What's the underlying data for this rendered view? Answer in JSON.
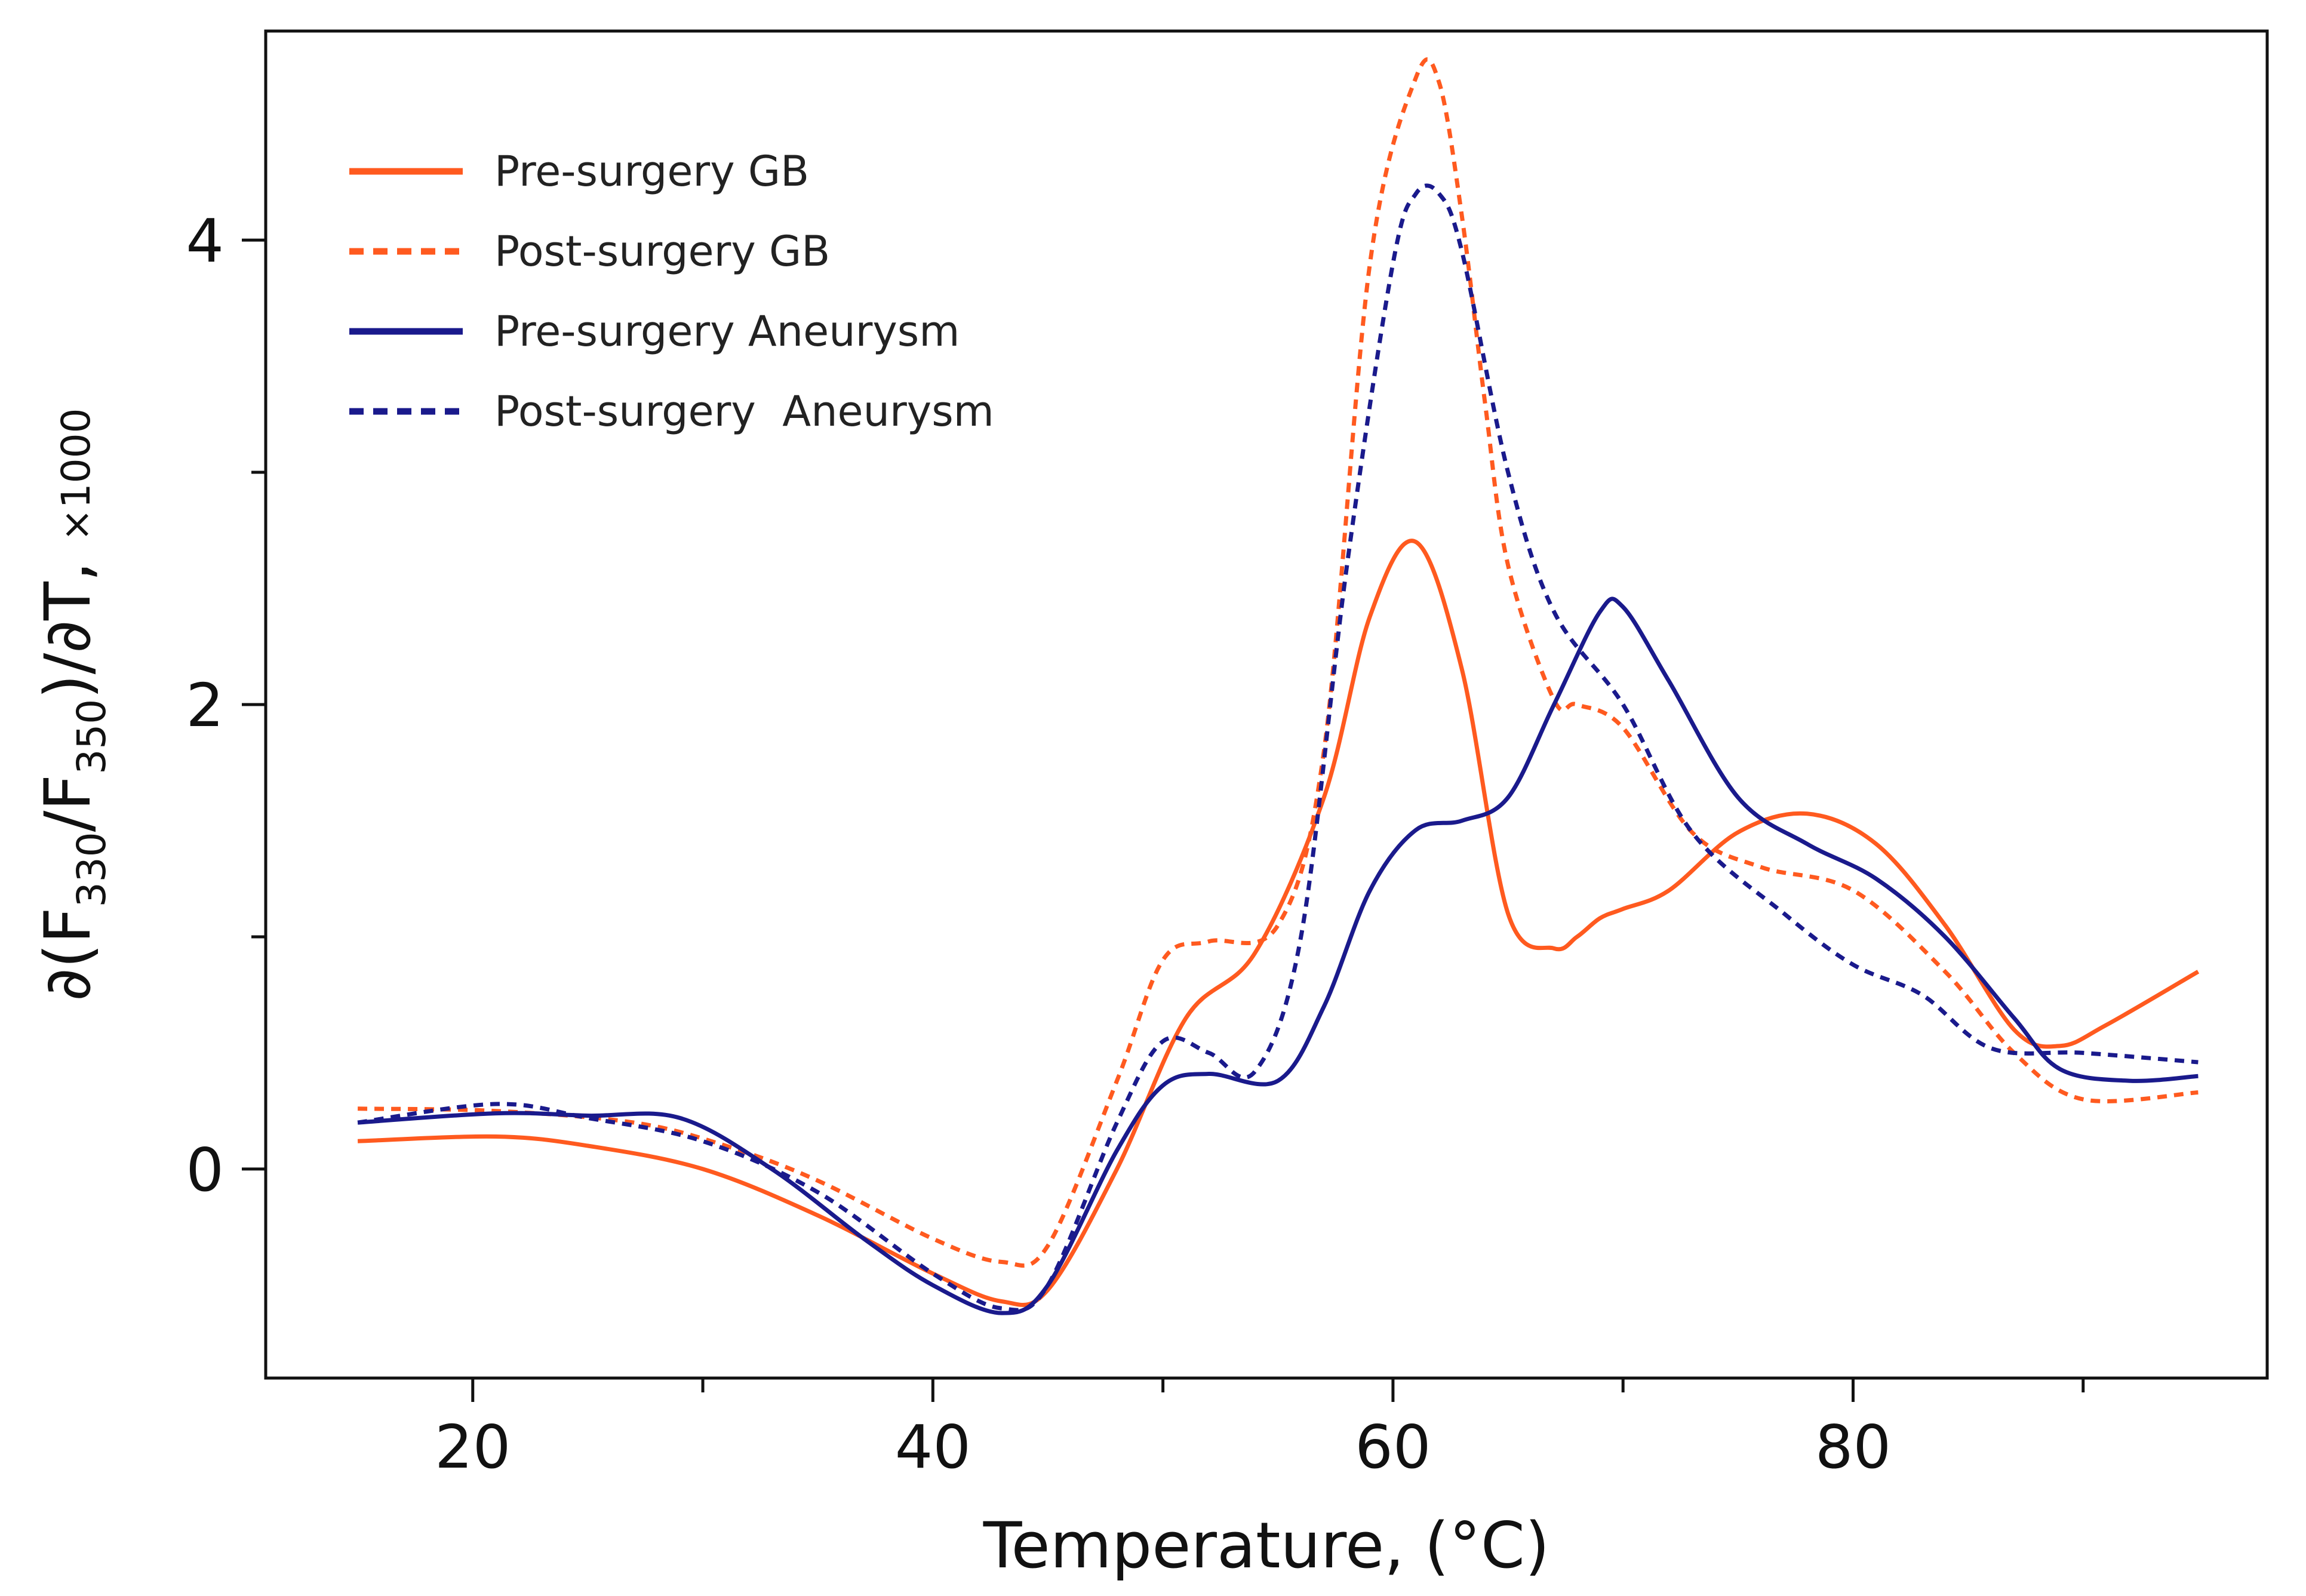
{
  "chart_data": {
    "type": "line",
    "title": "",
    "xlabel": "Temperature, (°C)",
    "ylabel_parts": [
      "∂(F",
      "330",
      "/F",
      "350",
      ")/∂T, ",
      "×1000"
    ],
    "xlim": [
      11,
      98
    ],
    "ylim": [
      -0.9,
      4.9
    ],
    "xticks_major": [
      20,
      40,
      60,
      80
    ],
    "xticks_minor": [
      30,
      50,
      70,
      90
    ],
    "xtick_labels": [
      "20",
      "40",
      "60",
      "80"
    ],
    "yticks_major": [
      0,
      2,
      4
    ],
    "yticks_minor": [
      1,
      3
    ],
    "ytick_labels": [
      "0",
      "2",
      "4"
    ],
    "grid": false,
    "legend_position": "top-left",
    "series": [
      {
        "name": "Pre-surgery GB",
        "color": "#ff5a1f",
        "dash": false,
        "x": [
          15,
          21,
          25,
          30,
          35,
          40,
          43,
          45,
          48,
          51,
          54,
          57,
          59,
          61,
          63,
          65,
          67,
          68,
          69,
          70,
          72,
          75,
          78,
          81,
          84,
          87,
          89,
          91,
          95
        ],
        "y": [
          0.12,
          0.14,
          0.1,
          0.0,
          -0.2,
          -0.45,
          -0.57,
          -0.52,
          0.0,
          0.65,
          0.93,
          1.6,
          2.38,
          2.7,
          2.15,
          1.1,
          0.95,
          1.0,
          1.08,
          1.12,
          1.2,
          1.45,
          1.53,
          1.4,
          1.05,
          0.6,
          0.53,
          0.62,
          0.85
        ]
      },
      {
        "name": "Post-surgery GB",
        "color": "#ff5a1f",
        "dash": true,
        "x": [
          15,
          21,
          27,
          31,
          35,
          40,
          43,
          45,
          48,
          50,
          52,
          55,
          57,
          59,
          61,
          62,
          63,
          64,
          65,
          67,
          68,
          70,
          73,
          76,
          80,
          84,
          87,
          90,
          95
        ],
        "y": [
          0.26,
          0.25,
          0.2,
          0.1,
          -0.05,
          -0.3,
          -0.4,
          -0.33,
          0.38,
          0.9,
          0.98,
          1.05,
          1.8,
          3.9,
          4.7,
          4.68,
          4.1,
          3.3,
          2.6,
          2.02,
          2.0,
          1.9,
          1.45,
          1.3,
          1.2,
          0.85,
          0.5,
          0.3,
          0.33
        ]
      },
      {
        "name": "Pre-surgery Aneurysm",
        "color": "#1a1a8c",
        "dash": false,
        "x": [
          15,
          21,
          25,
          29,
          33,
          37,
          40,
          43,
          45,
          48,
          50,
          52,
          55,
          57,
          59,
          61,
          63,
          65,
          67,
          69,
          70,
          72,
          75,
          78,
          81,
          84,
          87,
          89,
          92,
          95
        ],
        "y": [
          0.2,
          0.24,
          0.23,
          0.22,
          0.0,
          -0.3,
          -0.5,
          -0.62,
          -0.5,
          0.08,
          0.36,
          0.41,
          0.38,
          0.7,
          1.2,
          1.46,
          1.5,
          1.6,
          2.0,
          2.4,
          2.42,
          2.1,
          1.6,
          1.4,
          1.25,
          1.0,
          0.65,
          0.43,
          0.38,
          0.4
        ]
      },
      {
        "name": "Post-surgery  Aneurysm",
        "color": "#1a1a8c",
        "dash": true,
        "x": [
          15,
          21,
          25,
          30,
          35,
          40,
          43,
          45,
          48,
          50,
          52,
          54,
          56,
          58,
          60,
          61,
          62,
          63,
          65,
          67,
          70,
          73,
          77,
          80,
          83,
          86,
          90,
          95
        ],
        "y": [
          0.2,
          0.28,
          0.22,
          0.12,
          -0.1,
          -0.45,
          -0.6,
          -0.5,
          0.2,
          0.55,
          0.5,
          0.42,
          1.0,
          2.6,
          3.9,
          4.2,
          4.2,
          3.95,
          3.0,
          2.4,
          2.0,
          1.45,
          1.1,
          0.88,
          0.75,
          0.52,
          0.5,
          0.46
        ]
      }
    ]
  }
}
